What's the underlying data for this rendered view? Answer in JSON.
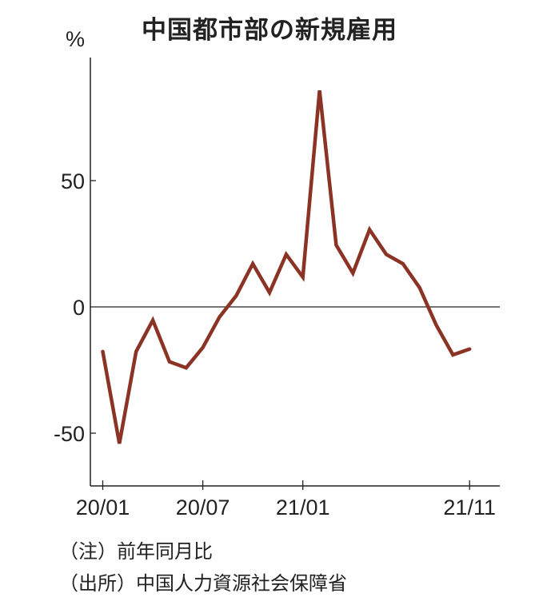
{
  "chart_data": {
    "type": "line",
    "title": "中国都市部の新規雇用",
    "ylabel": "%",
    "xlabel": "",
    "ylim": [
      -70,
      98
    ],
    "yticks": [
      -50,
      0,
      50
    ],
    "ytick_labels": [
      "-50",
      "0",
      "50"
    ],
    "xtick_labels": [
      {
        "label": "20/01",
        "index": 0
      },
      {
        "label": "20/07",
        "index": 6
      },
      {
        "label": "21/01",
        "index": 12
      },
      {
        "label": "21/11",
        "index": 22
      }
    ],
    "x": [
      "20/01",
      "20/02",
      "20/03",
      "20/04",
      "20/05",
      "20/06",
      "20/07",
      "20/08",
      "20/09",
      "20/10",
      "20/11",
      "20/12",
      "21/01",
      "21/02",
      "21/03",
      "21/04",
      "21/05",
      "21/06",
      "21/07",
      "21/08",
      "21/09",
      "21/10",
      "21/11"
    ],
    "series": [
      {
        "name": "新規雇用 前年同月比",
        "color": "#8b3324",
        "values": [
          -17.7,
          -54.1,
          -17.7,
          -5.3,
          -21.7,
          -24.1,
          -16.1,
          -4.0,
          4.4,
          17.1,
          5.7,
          20.8,
          11.8,
          85.7,
          24.5,
          13.4,
          30.6,
          20.8,
          17.1,
          7.6,
          -7.2,
          -19.0,
          -16.7
        ]
      }
    ],
    "grid": false,
    "zero_line": true
  },
  "notes": {
    "note": "（注）前年同月比",
    "source": "（出所）中国人力資源社会保障省"
  }
}
